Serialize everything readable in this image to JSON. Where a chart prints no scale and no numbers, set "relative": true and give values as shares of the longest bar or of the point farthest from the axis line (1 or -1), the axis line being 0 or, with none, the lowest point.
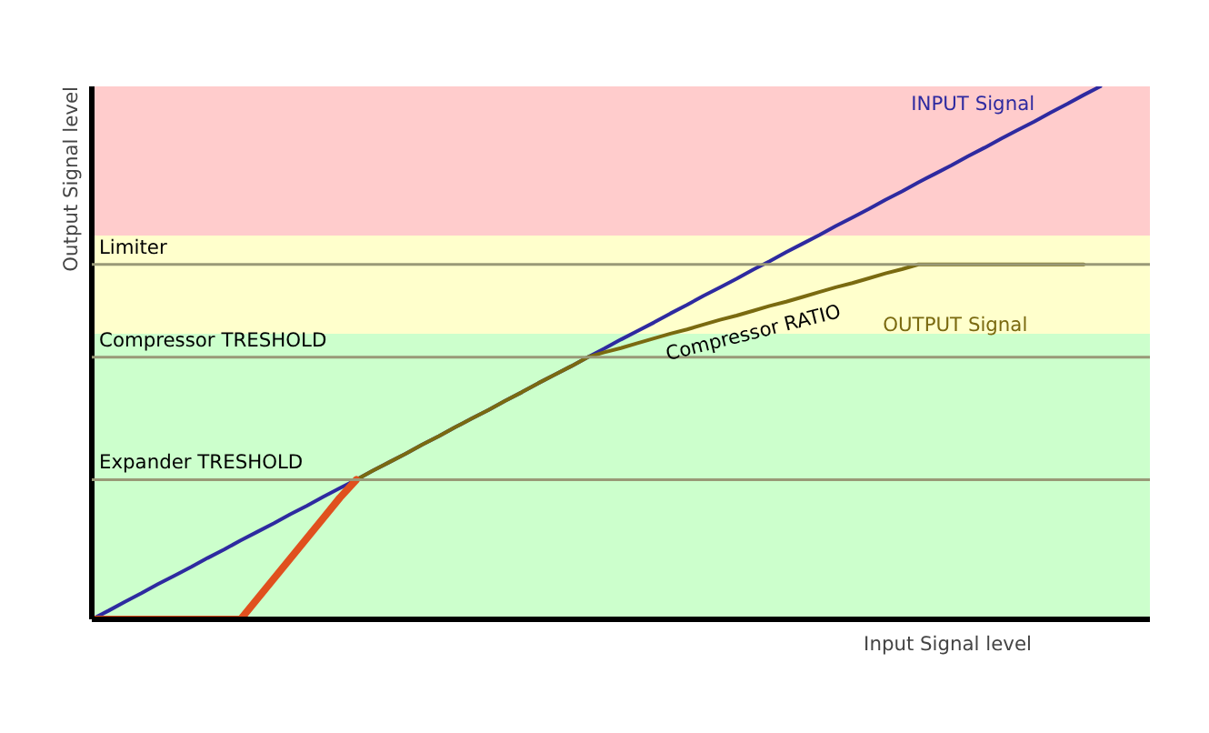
{
  "chart_data": {
    "type": "line",
    "relative": true,
    "xlabel": "Input Signal level",
    "ylabel": "Output Signal level",
    "categories": [
      null,
      null,
      null,
      null,
      null,
      null,
      null,
      null,
      null,
      null,
      null,
      null,
      null,
      null,
      null,
      null,
      null,
      null,
      null,
      null,
      null,
      null,
      null,
      null,
      null,
      null,
      null,
      null,
      null,
      null,
      null,
      null,
      null,
      null,
      null,
      null,
      null,
      null,
      null,
      null,
      null,
      null,
      null,
      null,
      null,
      null,
      null,
      null,
      null,
      null,
      null,
      null,
      null,
      null,
      null,
      null,
      null,
      null,
      null,
      null,
      null,
      null,
      null,
      null,
      null
    ],
    "series": [
      {
        "name": "INPUT Signal",
        "color": "#2e2aa0",
        "values": [
          0,
          0.016,
          0.033,
          0.049,
          0.066,
          0.082,
          0.098,
          0.115,
          0.131,
          0.148,
          0.164,
          0.18,
          0.197,
          0.213,
          0.23,
          0.246,
          0.262,
          0.279,
          0.295,
          0.311,
          0.328,
          0.344,
          0.361,
          0.377,
          0.393,
          0.41,
          0.426,
          0.443,
          0.459,
          0.475,
          0.492,
          0.508,
          0.525,
          0.541,
          0.557,
          0.574,
          0.59,
          0.607,
          0.623,
          0.639,
          0.656,
          0.672,
          0.689,
          0.705,
          0.721,
          0.738,
          0.754,
          0.77,
          0.787,
          0.803,
          0.82,
          0.836,
          0.852,
          0.869,
          0.885,
          0.902,
          0.918,
          0.934,
          0.951,
          0.967,
          0.984,
          1,
          null,
          null,
          null
        ]
      },
      {
        "name": "OUTPUT Signal",
        "color": "#7a6a10",
        "values": [
          null,
          null,
          null,
          null,
          null,
          null,
          null,
          null,
          null,
          null,
          null,
          null,
          null,
          null,
          null,
          null,
          0.262,
          0.279,
          0.295,
          0.311,
          0.328,
          0.344,
          0.361,
          0.377,
          0.393,
          0.41,
          0.426,
          0.443,
          0.459,
          0.475,
          0.492,
          0.501,
          0.509,
          0.518,
          0.527,
          0.536,
          0.544,
          0.553,
          0.562,
          0.57,
          0.579,
          0.588,
          0.596,
          0.605,
          0.614,
          0.623,
          0.631,
          0.64,
          0.649,
          0.657,
          0.666,
          0.666,
          0.666,
          0.666,
          0.666,
          0.666,
          0.666,
          0.666,
          0.666,
          0.666,
          0.666,
          null,
          null,
          null,
          null
        ]
      },
      {
        "color": "#e0501e",
        "values": [
          0,
          0,
          0,
          0,
          0,
          0,
          0,
          0,
          0,
          0,
          0.038,
          0.076,
          0.114,
          0.152,
          0.19,
          0.228,
          0.262,
          null,
          null,
          null,
          null,
          null,
          null,
          null,
          null,
          null,
          null,
          null,
          null,
          null,
          null,
          null,
          null,
          null,
          null,
          null,
          null,
          null,
          null,
          null,
          null,
          null,
          null,
          null,
          null,
          null,
          null,
          null,
          null,
          null,
          null,
          null,
          null,
          null,
          null,
          null,
          null,
          null,
          null,
          null,
          null,
          null,
          null,
          null,
          null
        ]
      }
    ],
    "bands": [
      {
        "axis": "y",
        "from": 0,
        "to": 0.536,
        "color": "#ccffcc"
      },
      {
        "axis": "y",
        "from": 0.536,
        "to": 0.72,
        "color": "#ffffcc"
      },
      {
        "axis": "y",
        "from": 0.72,
        "to": 1,
        "color": "#ffcccc"
      }
    ],
    "ref_lines": [
      {
        "axis": "y",
        "value": 0.666,
        "label": "Limiter",
        "color": "#999977"
      },
      {
        "axis": "y",
        "value": 0.492,
        "label": "Compressor TRESHOLD",
        "color": "#999977"
      },
      {
        "axis": "y",
        "value": 0.262,
        "label": "Expander TRESHOLD",
        "color": "#999977"
      }
    ],
    "annotations": [
      "Compressor RATIO"
    ]
  }
}
